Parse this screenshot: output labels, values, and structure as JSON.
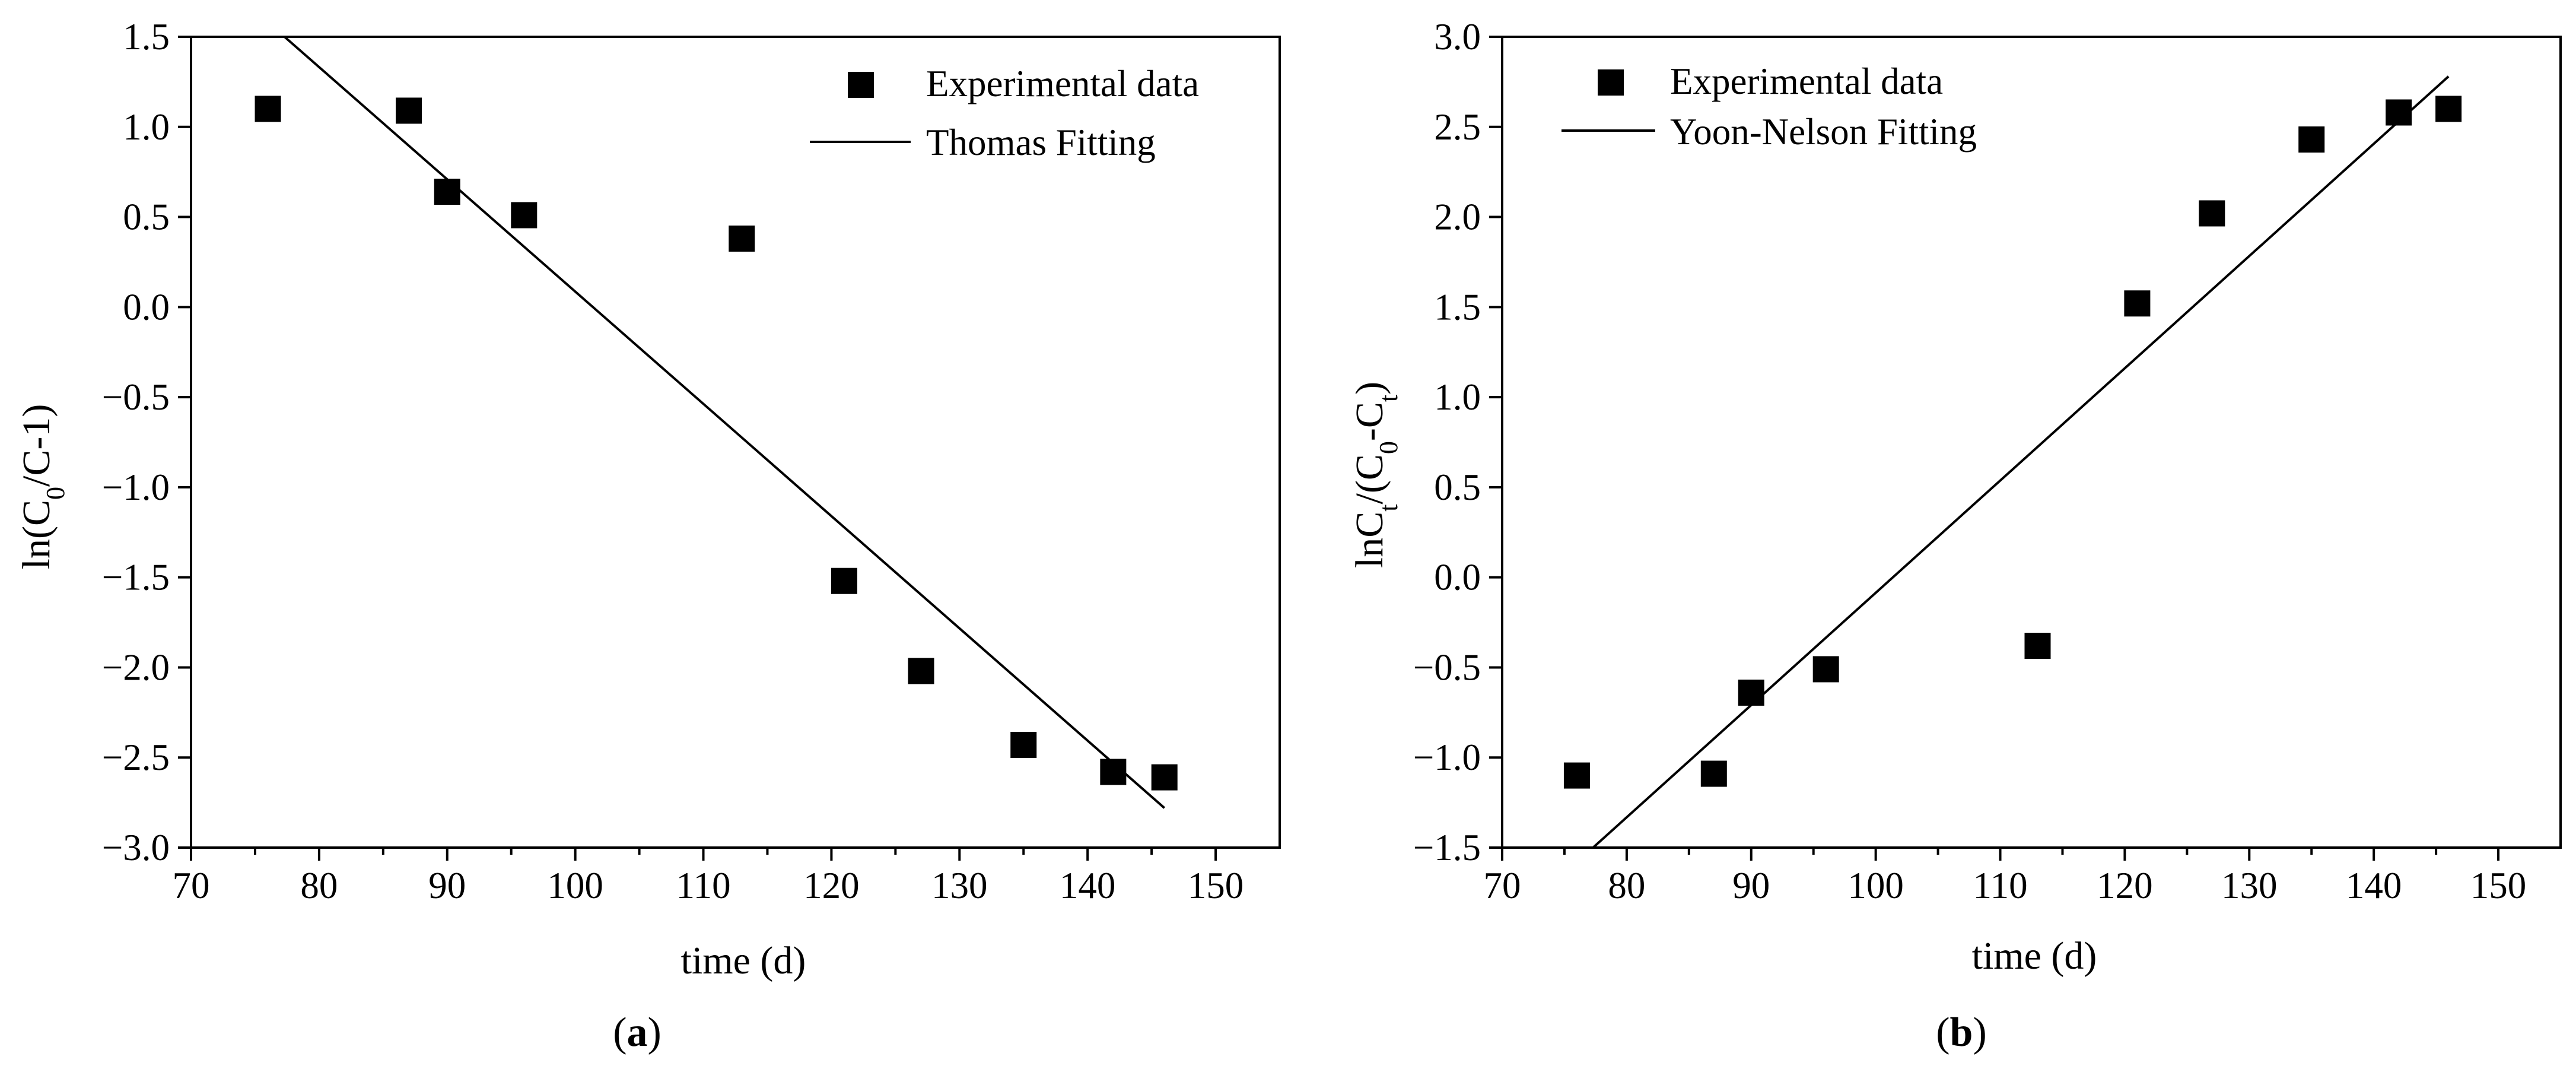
{
  "chart_data": [
    {
      "type": "scatter",
      "panel_label": "a",
      "xlabel": "time (d)",
      "ylabel": "ln(C0/C-1)",
      "ylabel_parts": {
        "pre": "ln(C",
        "sub": "0",
        "post": "/C-1)"
      },
      "xlim": [
        70,
        155
      ],
      "ylim": [
        -3.0,
        1.5
      ],
      "x_ticks": [
        70,
        80,
        90,
        100,
        110,
        120,
        130,
        140,
        150
      ],
      "y_ticks": [
        1.5,
        1.0,
        0.5,
        0.0,
        -0.5,
        -1.0,
        -1.5,
        -2.0,
        -2.5,
        -3.0
      ],
      "x_tick_labels": [
        "70",
        "80",
        "90",
        "100",
        "110",
        "120",
        "130",
        "140",
        "150"
      ],
      "y_tick_labels": [
        "1.5",
        "1.0",
        "0.5",
        "0.0",
        "−0.5",
        "−1.0",
        "−1.5",
        "−2.0",
        "−2.5",
        "−3.0"
      ],
      "legend": [
        "Experimental data",
        "Thomas Fitting"
      ],
      "legend_position": "top-right",
      "series": [
        {
          "name": "Experimental data",
          "kind": "points",
          "x": [
            76,
            87,
            90,
            96,
            113,
            121,
            127,
            135,
            142,
            146
          ],
          "y": [
            1.1,
            1.09,
            0.64,
            0.51,
            0.38,
            -1.52,
            -2.02,
            -2.43,
            -2.58,
            -2.61
          ]
        },
        {
          "name": "Thomas Fitting",
          "kind": "line",
          "x": [
            77.3,
            146
          ],
          "y": [
            1.5,
            -2.78
          ]
        }
      ]
    },
    {
      "type": "scatter",
      "panel_label": "b",
      "xlabel": "time (d)",
      "ylabel": "lnCt/(C0-Ct)",
      "ylabel_parts": {
        "a": "lnC",
        "b": "t",
        "c": "/(C",
        "d": "0",
        "e": "-C",
        "f": "t",
        "g": ")"
      },
      "xlim": [
        70,
        155
      ],
      "ylim": [
        -1.5,
        3.0
      ],
      "x_ticks": [
        70,
        80,
        90,
        100,
        110,
        120,
        130,
        140,
        150
      ],
      "y_ticks": [
        3.0,
        2.5,
        2.0,
        1.5,
        1.0,
        0.5,
        0.0,
        -0.5,
        -1.0,
        -1.5
      ],
      "x_tick_labels": [
        "70",
        "80",
        "90",
        "100",
        "110",
        "120",
        "130",
        "140",
        "150"
      ],
      "y_tick_labels": [
        "3.0",
        "2.5",
        "2.0",
        "1.5",
        "1.0",
        "0.5",
        "0.0",
        "−0.5",
        "−1.0",
        "−1.5"
      ],
      "legend": [
        "Experimental data",
        "Yoon-Nelson Fitting"
      ],
      "legend_position": "top-left",
      "series": [
        {
          "name": "Experimental data",
          "kind": "points",
          "x": [
            76,
            87,
            90,
            96,
            113,
            121,
            127,
            135,
            142,
            146
          ],
          "y": [
            -1.1,
            -1.09,
            -0.64,
            -0.51,
            -0.38,
            1.52,
            2.02,
            2.43,
            2.58,
            2.6
          ]
        },
        {
          "name": "Yoon-Nelson Fitting",
          "kind": "line",
          "x": [
            77.3,
            146
          ],
          "y": [
            -1.5,
            2.78
          ]
        }
      ]
    }
  ],
  "captions": [
    "(a)",
    "(b)"
  ]
}
